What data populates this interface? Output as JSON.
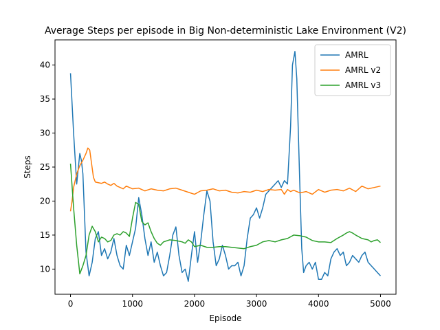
{
  "chart_data": {
    "type": "line",
    "title": "Average Steps per episode in Big Non-deterministic Lake Environment (V2)",
    "xlabel": "Episode",
    "ylabel": "Steps",
    "xlim": [
      -250,
      5250
    ],
    "ylim": [
      6.3,
      43.7
    ],
    "xticks": [
      0,
      1000,
      2000,
      3000,
      4000,
      5000
    ],
    "yticks": [
      10,
      15,
      20,
      25,
      30,
      35,
      40
    ],
    "grid": false,
    "legend_position": "top-right",
    "series": [
      {
        "name": "AMRL",
        "color": "#1f77b4",
        "x": [
          0,
          50,
          100,
          150,
          175,
          200,
          250,
          300,
          350,
          400,
          450,
          500,
          550,
          600,
          650,
          700,
          750,
          800,
          850,
          900,
          950,
          1000,
          1050,
          1100,
          1150,
          1200,
          1250,
          1300,
          1350,
          1400,
          1450,
          1500,
          1550,
          1600,
          1650,
          1700,
          1750,
          1800,
          1850,
          1900,
          1950,
          2000,
          2050,
          2100,
          2150,
          2200,
          2250,
          2300,
          2350,
          2400,
          2450,
          2500,
          2550,
          2600,
          2650,
          2700,
          2750,
          2800,
          2850,
          2900,
          2950,
          3000,
          3050,
          3100,
          3150,
          3200,
          3250,
          3300,
          3350,
          3400,
          3450,
          3500,
          3550,
          3580,
          3620,
          3650,
          3700,
          3730,
          3760,
          3800,
          3850,
          3900,
          3950,
          4000,
          4050,
          4100,
          4150,
          4200,
          4250,
          4300,
          4350,
          4400,
          4450,
          4500,
          4550,
          4600,
          4650,
          4700,
          4750,
          4800,
          4850,
          4900,
          4950,
          5000
        ],
        "y": [
          38.8,
          30.0,
          22.5,
          27.0,
          26.0,
          24.0,
          12.5,
          9.0,
          11.0,
          14.5,
          15.5,
          12.0,
          13.0,
          11.5,
          12.5,
          14.5,
          12.0,
          10.5,
          10.0,
          13.5,
          12.0,
          14.0,
          16.0,
          20.5,
          18.0,
          14.5,
          12.0,
          14.0,
          11.0,
          12.5,
          10.5,
          9.0,
          9.5,
          12.0,
          15.0,
          16.2,
          12.0,
          9.5,
          10.0,
          8.2,
          12.0,
          15.5,
          11.0,
          14.0,
          18.0,
          21.5,
          20.0,
          14.0,
          10.5,
          11.5,
          13.5,
          12.0,
          10.0,
          10.5,
          10.5,
          11.0,
          9.0,
          10.5,
          14.5,
          17.5,
          18.0,
          19.0,
          17.5,
          19.0,
          21.0,
          21.5,
          22.0,
          22.5,
          23.0,
          22.0,
          23.0,
          22.5,
          31.0,
          40.0,
          42.0,
          38.0,
          22.0,
          13.0,
          9.5,
          10.5,
          11.0,
          10.0,
          11.0,
          8.5,
          8.5,
          9.5,
          9.0,
          11.5,
          12.5,
          13.0,
          12.0,
          12.5,
          10.5,
          11.0,
          12.0,
          11.5,
          11.0,
          12.0,
          12.5,
          11.0,
          10.5,
          10.0,
          9.5,
          9.0
        ],
        "stroke_width": 1.5
      },
      {
        "name": "AMRL v2",
        "color": "#ff7f0e",
        "x": [
          0,
          25,
          50,
          100,
          150,
          200,
          250,
          280,
          310,
          340,
          370,
          400,
          450,
          500,
          550,
          600,
          650,
          700,
          750,
          800,
          850,
          900,
          950,
          1000,
          1100,
          1200,
          1300,
          1400,
          1500,
          1600,
          1700,
          1800,
          1900,
          2000,
          2100,
          2200,
          2300,
          2400,
          2500,
          2600,
          2700,
          2800,
          2900,
          3000,
          3100,
          3200,
          3300,
          3400,
          3450,
          3500,
          3550,
          3600,
          3700,
          3800,
          3900,
          4000,
          4100,
          4200,
          4300,
          4400,
          4500,
          4600,
          4700,
          4800,
          4900,
          5000
        ],
        "y": [
          18.5,
          20.0,
          22.0,
          24.0,
          25.2,
          26.0,
          27.0,
          27.8,
          27.5,
          25.5,
          23.5,
          22.8,
          22.7,
          22.6,
          22.8,
          22.5,
          22.3,
          22.6,
          22.2,
          22.0,
          21.8,
          22.2,
          22.0,
          21.8,
          21.9,
          21.5,
          21.8,
          21.6,
          21.5,
          21.8,
          21.9,
          21.6,
          21.3,
          21.0,
          21.5,
          21.6,
          21.8,
          21.5,
          21.6,
          21.3,
          21.2,
          21.4,
          21.3,
          21.6,
          21.4,
          21.7,
          21.6,
          21.7,
          21.0,
          21.7,
          21.4,
          21.6,
          21.2,
          21.4,
          21.0,
          21.7,
          21.3,
          21.6,
          21.7,
          21.5,
          21.9,
          21.4,
          22.2,
          21.8,
          22.0,
          22.2
        ],
        "stroke_width": 1.5
      },
      {
        "name": "AMRL v3",
        "color": "#2ca02c",
        "x": [
          0,
          50,
          100,
          130,
          150,
          200,
          250,
          300,
          350,
          400,
          450,
          500,
          550,
          600,
          650,
          700,
          750,
          800,
          850,
          900,
          950,
          1000,
          1050,
          1100,
          1150,
          1200,
          1250,
          1300,
          1350,
          1400,
          1450,
          1500,
          1600,
          1700,
          1800,
          1850,
          1900,
          1950,
          2000,
          2100,
          2200,
          2300,
          2400,
          2500,
          2600,
          2700,
          2800,
          2900,
          3000,
          3100,
          3200,
          3300,
          3400,
          3500,
          3600,
          3700,
          3800,
          3900,
          4000,
          4100,
          4200,
          4300,
          4400,
          4450,
          4500,
          4550,
          4600,
          4700,
          4800,
          4850,
          4900,
          4950,
          5000
        ],
        "y": [
          25.5,
          19.0,
          13.5,
          11.0,
          9.3,
          10.5,
          12.0,
          15.0,
          16.3,
          15.5,
          14.0,
          14.7,
          14.5,
          14.0,
          14.2,
          15.0,
          15.2,
          15.0,
          15.5,
          15.3,
          14.8,
          17.5,
          19.8,
          19.5,
          17.0,
          16.5,
          16.8,
          15.5,
          14.5,
          13.8,
          13.5,
          14.0,
          14.3,
          14.2,
          14.0,
          13.8,
          14.3,
          14.0,
          13.3,
          13.5,
          13.2,
          13.2,
          13.3,
          13.3,
          13.2,
          13.1,
          13.0,
          13.3,
          13.5,
          14.0,
          14.2,
          14.0,
          14.3,
          14.5,
          15.0,
          14.9,
          14.7,
          14.2,
          14.0,
          14.0,
          13.9,
          14.5,
          15.0,
          15.3,
          15.5,
          15.3,
          15.0,
          14.5,
          14.3,
          14.0,
          14.2,
          14.3,
          13.9
        ],
        "stroke_width": 1.5
      }
    ]
  }
}
